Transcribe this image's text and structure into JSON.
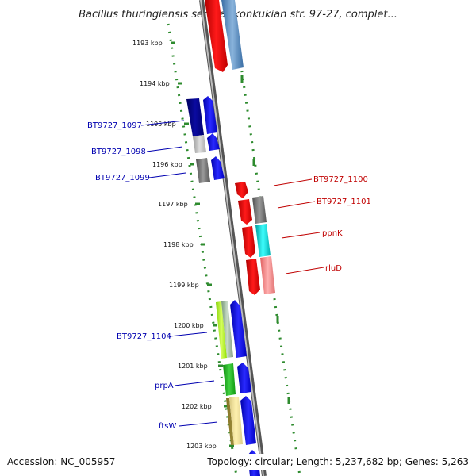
{
  "title": "Bacillus thuringiensis serovar konkukian str. 97-27, complet...",
  "footer": {
    "accession": "Accession: NC_005957",
    "summary": "Topology: circular; Length: 5,237,682 bp; Genes: 5,263"
  },
  "kbp_ticks": [
    "1193 kbp",
    "1194 kbp",
    "1195 kbp",
    "1196 kbp",
    "1197 kbp",
    "1198 kbp",
    "1199 kbp",
    "1200 kbp",
    "1201 kbp",
    "1202 kbp",
    "1203 kbp"
  ],
  "gene_labels": {
    "bt1097": "BT9727_1097",
    "bt1098": "BT9727_1098",
    "bt1099": "BT9727_1099",
    "bt1100": "BT9727_1100",
    "bt1101": "BT9727_1101",
    "ppnK": "ppnK",
    "rluD": "rluD",
    "bt1104": "BT9727_1104",
    "prpA": "prpA",
    "ftsW": "ftsW"
  },
  "colors": {
    "forward_label": "#0000b0",
    "reverse_label": "#c00000",
    "guide_dots": "#2e8b2e",
    "backbone": "#8a8a8a"
  }
}
